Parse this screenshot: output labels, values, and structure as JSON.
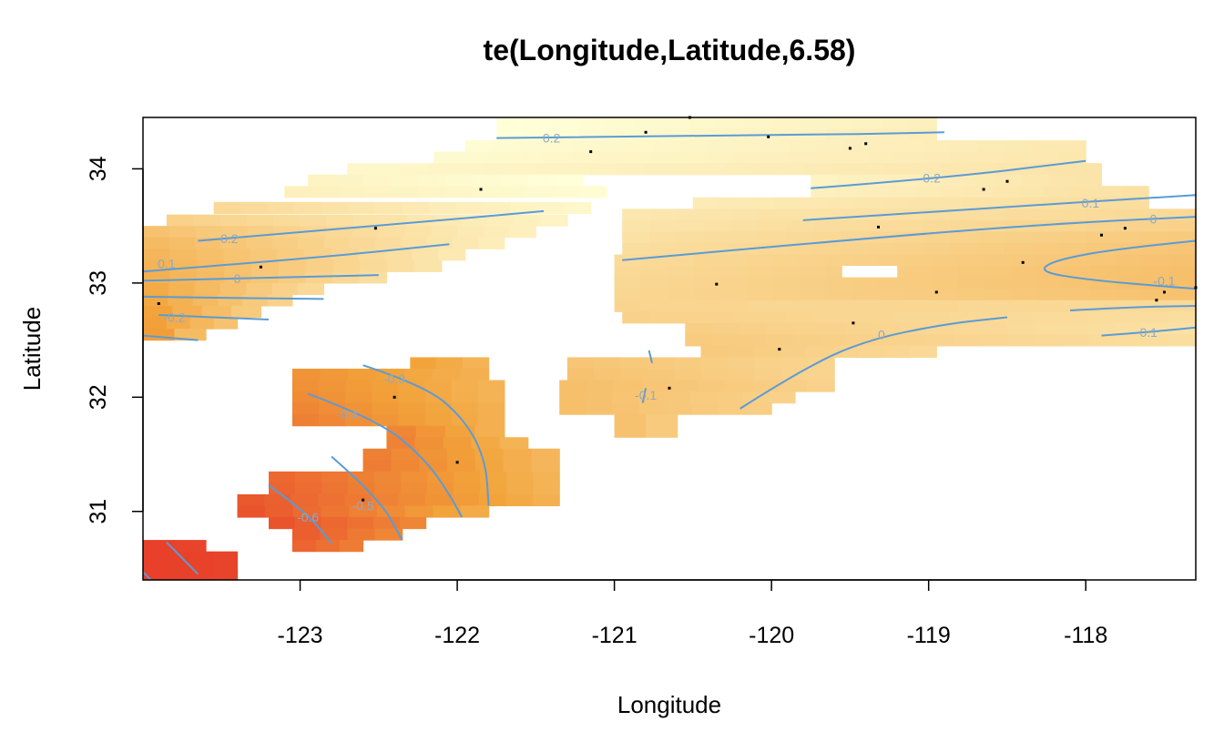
{
  "chart_data": {
    "type": "heatmap",
    "title": "te(Longitude,Latitude,6.58)",
    "xlabel": "Longitude",
    "ylabel": "Latitude",
    "xlim": [
      -124.0,
      -117.3
    ],
    "ylim": [
      30.4,
      34.45
    ],
    "x_ticks": [
      -123,
      -122,
      -121,
      -120,
      -119,
      -118
    ],
    "x_tick_labels": [
      "-123",
      "-122",
      "-121",
      "-120",
      "-119",
      "-118"
    ],
    "y_ticks": [
      31,
      32,
      33,
      34
    ],
    "y_tick_labels": [
      "31",
      "32",
      "33",
      "34"
    ],
    "cell_size": [
      0.17,
      0.1
    ],
    "color_scale": {
      "low": -0.8,
      "high": 0.3,
      "low_color": "#e8402a",
      "mid_color": "#f2a33a",
      "high_color": "#ffffd8"
    },
    "regions": [
      {
        "name": "north-west-band",
        "rows": [
          {
            "y": 33.66,
            "x0": -123.55,
            "x1": -121.15,
            "v0": 0.05,
            "v1": 0.25
          },
          {
            "y": 33.55,
            "x0": -123.85,
            "x1": -121.3,
            "v0": 0.0,
            "v1": 0.22
          },
          {
            "y": 33.45,
            "x0": -124.0,
            "x1": -121.5,
            "v0": -0.1,
            "v1": 0.2
          },
          {
            "y": 33.35,
            "x0": -124.0,
            "x1": -121.7,
            "v0": -0.15,
            "v1": 0.18
          },
          {
            "y": 33.25,
            "x0": -124.0,
            "x1": -121.95,
            "v0": -0.18,
            "v1": 0.15
          },
          {
            "y": 33.15,
            "x0": -124.0,
            "x1": -122.1,
            "v0": -0.2,
            "v1": 0.12
          },
          {
            "y": 33.05,
            "x0": -124.0,
            "x1": -122.45,
            "v0": -0.22,
            "v1": 0.08
          },
          {
            "y": 32.95,
            "x0": -124.0,
            "x1": -122.85,
            "v0": -0.25,
            "v1": 0.05
          },
          {
            "y": 32.85,
            "x0": -124.0,
            "x1": -123.05,
            "v0": -0.27,
            "v1": 0.0
          },
          {
            "y": 32.75,
            "x0": -124.0,
            "x1": -123.25,
            "v0": -0.3,
            "v1": -0.05
          },
          {
            "y": 32.65,
            "x0": -124.0,
            "x1": -123.4,
            "v0": -0.32,
            "v1": -0.1
          },
          {
            "y": 32.55,
            "x0": -124.0,
            "x1": -123.6,
            "v0": -0.33,
            "v1": -0.15
          }
        ]
      },
      {
        "name": "north-band",
        "rows": [
          {
            "y": 34.4,
            "x0": -121.75,
            "x1": -118.95,
            "v0": 0.3,
            "v1": 0.2
          },
          {
            "y": 34.3,
            "x0": -121.75,
            "x1": -118.95,
            "v0": 0.3,
            "v1": 0.18
          },
          {
            "y": 34.2,
            "x0": -121.95,
            "x1": -118.0,
            "v0": 0.28,
            "v1": 0.15
          },
          {
            "y": 34.1,
            "x0": -122.15,
            "x1": -118.0,
            "v0": 0.27,
            "v1": 0.14
          },
          {
            "y": 34.0,
            "x0": -122.7,
            "x1": -117.9,
            "v0": 0.25,
            "v1": 0.12
          },
          {
            "y": 33.9,
            "x0": -122.95,
            "x1": -121.2,
            "v0": 0.22,
            "v1": 0.3
          },
          {
            "y": 33.8,
            "x0": -123.1,
            "x1": -121.05,
            "v0": 0.2,
            "v1": 0.28
          },
          {
            "y": 33.9,
            "x0": -119.75,
            "x1": -117.9,
            "v0": 0.22,
            "v1": 0.12
          },
          {
            "y": 33.8,
            "x0": -119.75,
            "x1": -117.6,
            "v0": 0.2,
            "v1": 0.1
          },
          {
            "y": 33.7,
            "x0": -120.5,
            "x1": -117.6,
            "v0": 0.17,
            "v1": 0.08
          }
        ]
      },
      {
        "name": "east-band",
        "rows": [
          {
            "y": 33.6,
            "x0": -120.95,
            "x1": -117.3,
            "v0": 0.14,
            "v1": 0.05
          },
          {
            "y": 33.5,
            "x0": -120.95,
            "x1": -117.3,
            "v0": 0.12,
            "v1": 0.0
          },
          {
            "y": 33.4,
            "x0": -120.95,
            "x1": -117.3,
            "v0": 0.1,
            "v1": -0.05
          },
          {
            "y": 33.3,
            "x0": -120.95,
            "x1": -117.3,
            "v0": 0.08,
            "v1": -0.08
          },
          {
            "y": 33.2,
            "x0": -121.0,
            "x1": -117.3,
            "v0": 0.06,
            "v1": -0.1
          },
          {
            "y": 33.1,
            "x0": -121.0,
            "x1": -117.3,
            "v0": 0.05,
            "v1": -0.12
          },
          {
            "y": 33.0,
            "x0": -121.0,
            "x1": -117.3,
            "v0": 0.04,
            "v1": -0.12
          },
          {
            "y": 32.9,
            "x0": -121.0,
            "x1": -117.3,
            "v0": 0.03,
            "v1": -0.1
          },
          {
            "y": 32.8,
            "x0": -121.0,
            "x1": -117.3,
            "v0": 0.02,
            "v1": 0.05
          },
          {
            "y": 32.7,
            "x0": -120.95,
            "x1": -117.3,
            "v0": 0.0,
            "v1": 0.08
          },
          {
            "y": 32.6,
            "x0": -120.55,
            "x1": -117.3,
            "v0": -0.02,
            "v1": 0.1
          },
          {
            "y": 32.5,
            "x0": -120.55,
            "x1": -117.3,
            "v0": -0.04,
            "v1": 0.08
          },
          {
            "y": 32.4,
            "x0": -120.45,
            "x1": -118.95,
            "v0": -0.05,
            "v1": 0.05
          },
          {
            "y": 32.3,
            "x0": -121.3,
            "x1": -119.6,
            "v0": -0.08,
            "v1": 0.02
          },
          {
            "y": 32.2,
            "x0": -121.3,
            "x1": -119.6,
            "v0": -0.1,
            "v1": 0.02
          },
          {
            "y": 32.1,
            "x0": -121.35,
            "x1": -119.6,
            "v0": -0.12,
            "v1": 0.0
          },
          {
            "y": 32.0,
            "x0": -121.35,
            "x1": -119.85,
            "v0": -0.12,
            "v1": 0.0
          },
          {
            "y": 31.9,
            "x0": -121.35,
            "x1": -120.0,
            "v0": -0.12,
            "v1": -0.02
          },
          {
            "y": 31.8,
            "x0": -121.0,
            "x1": -120.6,
            "v0": -0.1,
            "v1": -0.05
          },
          {
            "y": 31.7,
            "x0": -121.0,
            "x1": -120.6,
            "v0": -0.1,
            "v1": -0.05
          }
        ]
      },
      {
        "name": "south-west-blob",
        "rows": [
          {
            "y": 32.3,
            "x0": -122.3,
            "x1": -121.8,
            "v0": -0.3,
            "v1": -0.2
          },
          {
            "y": 32.2,
            "x0": -123.05,
            "x1": -121.8,
            "v0": -0.38,
            "v1": -0.22
          },
          {
            "y": 32.1,
            "x0": -123.05,
            "x1": -121.7,
            "v0": -0.4,
            "v1": -0.2
          },
          {
            "y": 32.0,
            "x0": -123.05,
            "x1": -121.7,
            "v0": -0.42,
            "v1": -0.2
          },
          {
            "y": 31.9,
            "x0": -123.05,
            "x1": -121.7,
            "v0": -0.45,
            "v1": -0.22
          },
          {
            "y": 31.8,
            "x0": -123.05,
            "x1": -121.7,
            "v0": -0.48,
            "v1": -0.22
          },
          {
            "y": 31.7,
            "x0": -122.45,
            "x1": -121.7,
            "v0": -0.45,
            "v1": -0.22
          },
          {
            "y": 31.6,
            "x0": -122.45,
            "x1": -121.55,
            "v0": -0.47,
            "v1": -0.2
          },
          {
            "y": 31.5,
            "x0": -122.6,
            "x1": -121.35,
            "v0": -0.48,
            "v1": -0.18
          },
          {
            "y": 31.4,
            "x0": -122.6,
            "x1": -121.35,
            "v0": -0.5,
            "v1": -0.18
          },
          {
            "y": 31.3,
            "x0": -123.2,
            "x1": -121.35,
            "v0": -0.6,
            "v1": -0.2
          },
          {
            "y": 31.2,
            "x0": -123.2,
            "x1": -121.35,
            "v0": -0.62,
            "v1": -0.2
          },
          {
            "y": 31.1,
            "x0": -123.4,
            "x1": -121.35,
            "v0": -0.68,
            "v1": -0.22
          },
          {
            "y": 31.0,
            "x0": -123.4,
            "x1": -121.8,
            "v0": -0.7,
            "v1": -0.25
          },
          {
            "y": 30.9,
            "x0": -123.2,
            "x1": -122.2,
            "v0": -0.7,
            "v1": -0.45
          },
          {
            "y": 30.8,
            "x0": -123.05,
            "x1": -122.35,
            "v0": -0.65,
            "v1": -0.45
          },
          {
            "y": 30.7,
            "x0": -123.05,
            "x1": -122.6,
            "v0": -0.62,
            "v1": -0.5
          }
        ]
      },
      {
        "name": "south-west-corner",
        "rows": [
          {
            "y": 30.7,
            "x0": -124.0,
            "x1": -123.6,
            "v0": -0.8,
            "v1": -0.78
          },
          {
            "y": 30.6,
            "x0": -124.0,
            "x1": -123.4,
            "v0": -0.8,
            "v1": -0.78
          },
          {
            "y": 30.5,
            "x0": -124.0,
            "x1": -123.4,
            "v0": -0.8,
            "v1": -0.78
          },
          {
            "y": 30.43,
            "x0": -124.0,
            "x1": -123.4,
            "v0": -0.8,
            "v1": -0.78
          }
        ]
      }
    ],
    "holes": [
      {
        "x0": -119.55,
        "x1": -119.2,
        "y0": 33.05,
        "y1": 33.15
      }
    ],
    "contours": [
      {
        "points": [
          [
            -121.75,
            34.27
          ],
          [
            -120.0,
            34.29
          ],
          [
            -118.9,
            34.32
          ]
        ],
        "label": "0.2",
        "label_at": [
          -121.4,
          34.27
        ]
      },
      {
        "points": [
          [
            -123.65,
            33.37
          ],
          [
            -122.5,
            33.5
          ],
          [
            -121.45,
            33.63
          ]
        ],
        "label": "0.2",
        "label_at": [
          -123.45,
          33.39
        ]
      },
      {
        "points": [
          [
            -119.75,
            33.83
          ],
          [
            -118.9,
            33.92
          ],
          [
            -118.0,
            34.07
          ]
        ],
        "label": "0.2",
        "label_at": [
          -118.98,
          33.92
        ]
      },
      {
        "points": [
          [
            -124.0,
            33.1
          ],
          [
            -122.9,
            33.22
          ],
          [
            -122.05,
            33.34
          ]
        ],
        "label": "0.1",
        "label_at": [
          -123.85,
          33.17
        ]
      },
      {
        "points": [
          [
            -119.8,
            33.55
          ],
          [
            -118.6,
            33.66
          ],
          [
            -117.3,
            33.77
          ]
        ],
        "label": "0.1",
        "label_at": [
          -117.97,
          33.7
        ]
      },
      {
        "points": [
          [
            -124.0,
            33.02
          ],
          [
            -123.1,
            33.05
          ],
          [
            -122.5,
            33.07
          ]
        ],
        "label": "0",
        "label_at": [
          -123.4,
          33.04
        ]
      },
      {
        "points": [
          [
            -120.95,
            33.2
          ],
          [
            -119.5,
            33.38
          ],
          [
            -118.2,
            33.52
          ],
          [
            -117.3,
            33.58
          ]
        ],
        "label": "0",
        "label_at": [
          -117.57,
          33.56
        ]
      },
      {
        "points": [
          [
            -124.0,
            32.88
          ],
          [
            -123.5,
            32.87
          ],
          [
            -122.85,
            32.86
          ]
        ],
        "label": "",
        "label_at": null
      },
      {
        "points": [
          [
            -123.9,
            32.72
          ],
          [
            -123.2,
            32.68
          ]
        ],
        "label": "-0.2",
        "label_at": [
          -123.8,
          32.7
        ]
      },
      {
        "points": [
          [
            -124.0,
            32.54
          ],
          [
            -123.65,
            32.5
          ]
        ],
        "label": "",
        "label_at": null
      },
      {
        "points": [
          [
            -120.2,
            31.9
          ],
          [
            -119.8,
            32.25
          ],
          [
            -119.4,
            32.5
          ],
          [
            -118.9,
            32.64
          ],
          [
            -118.5,
            32.7
          ]
        ],
        "label": "0",
        "label_at": [
          -119.3,
          32.55
        ]
      },
      {
        "points": [
          [
            -117.3,
            33.37
          ],
          [
            -117.8,
            33.3
          ],
          [
            -118.2,
            33.2
          ],
          [
            -118.3,
            33.1
          ],
          [
            -118.0,
            33.03
          ],
          [
            -117.5,
            32.97
          ],
          [
            -117.3,
            32.95
          ]
        ],
        "label": "-0.1",
        "label_at": [
          -117.5,
          33.02
        ]
      },
      {
        "points": [
          [
            -118.1,
            32.76
          ],
          [
            -117.7,
            32.79
          ],
          [
            -117.3,
            32.8
          ]
        ],
        "label": "",
        "label_at": null
      },
      {
        "points": [
          [
            -117.9,
            32.54
          ],
          [
            -117.6,
            32.57
          ],
          [
            -117.3,
            32.61
          ]
        ],
        "label": "0.1",
        "label_at": [
          -117.6,
          32.57
        ]
      },
      {
        "points": [
          [
            -120.78,
            32.41
          ],
          [
            -120.76,
            32.3
          ]
        ],
        "label": "",
        "label_at": null
      },
      {
        "points": [
          [
            -120.8,
            32.08
          ],
          [
            -120.82,
            31.95
          ]
        ],
        "label": "-0.1",
        "label_at": [
          -120.8,
          32.02
        ]
      },
      {
        "points": [
          [
            -122.6,
            32.28
          ],
          [
            -122.2,
            32.1
          ],
          [
            -121.95,
            31.8
          ],
          [
            -121.82,
            31.45
          ],
          [
            -121.8,
            31.05
          ]
        ],
        "label": "-0.3",
        "label_at": [
          -122.4,
          32.16
        ]
      },
      {
        "points": [
          [
            -122.95,
            32.03
          ],
          [
            -122.5,
            31.8
          ],
          [
            -122.2,
            31.45
          ],
          [
            -122.05,
            31.15
          ],
          [
            -121.97,
            30.95
          ]
        ],
        "label": "-0.4",
        "label_at": [
          -122.7,
          31.85
        ]
      },
      {
        "points": [
          [
            -122.8,
            31.48
          ],
          [
            -122.5,
            31.12
          ],
          [
            -122.35,
            30.75
          ]
        ],
        "label": "-0.5",
        "label_at": [
          -122.6,
          31.05
        ]
      },
      {
        "points": [
          [
            -123.2,
            31.23
          ],
          [
            -122.95,
            30.98
          ],
          [
            -122.8,
            30.72
          ]
        ],
        "label": "-0.6",
        "label_at": [
          -122.95,
          30.95
        ]
      },
      {
        "points": [
          [
            -123.85,
            30.73
          ],
          [
            -123.65,
            30.45
          ]
        ],
        "label": "",
        "label_at": null
      },
      {
        "points": [
          [
            -124.0,
            30.47
          ],
          [
            -123.95,
            30.4
          ]
        ],
        "label": "",
        "label_at": null
      }
    ],
    "observations": [
      [
        -120.52,
        34.45
      ],
      [
        -120.8,
        34.32
      ],
      [
        -120.02,
        34.28
      ],
      [
        -121.15,
        34.15
      ],
      [
        -119.5,
        34.18
      ],
      [
        -119.4,
        34.22
      ],
      [
        -121.85,
        33.82
      ],
      [
        -118.65,
        33.82
      ],
      [
        -118.5,
        33.89
      ],
      [
        -122.52,
        33.48
      ],
      [
        -119.32,
        33.49
      ],
      [
        -117.9,
        33.42
      ],
      [
        -117.75,
        33.48
      ],
      [
        -123.25,
        33.14
      ],
      [
        -118.4,
        33.18
      ],
      [
        -120.35,
        32.99
      ],
      [
        -118.95,
        32.92
      ],
      [
        -117.5,
        32.92
      ],
      [
        -117.55,
        32.85
      ],
      [
        -117.3,
        32.96
      ],
      [
        -123.9,
        32.82
      ],
      [
        -119.48,
        32.65
      ],
      [
        -119.95,
        32.42
      ],
      [
        -120.65,
        32.08
      ],
      [
        -122.4,
        32.0
      ],
      [
        -122.0,
        31.43
      ],
      [
        -122.6,
        31.1
      ]
    ],
    "grid": false
  }
}
